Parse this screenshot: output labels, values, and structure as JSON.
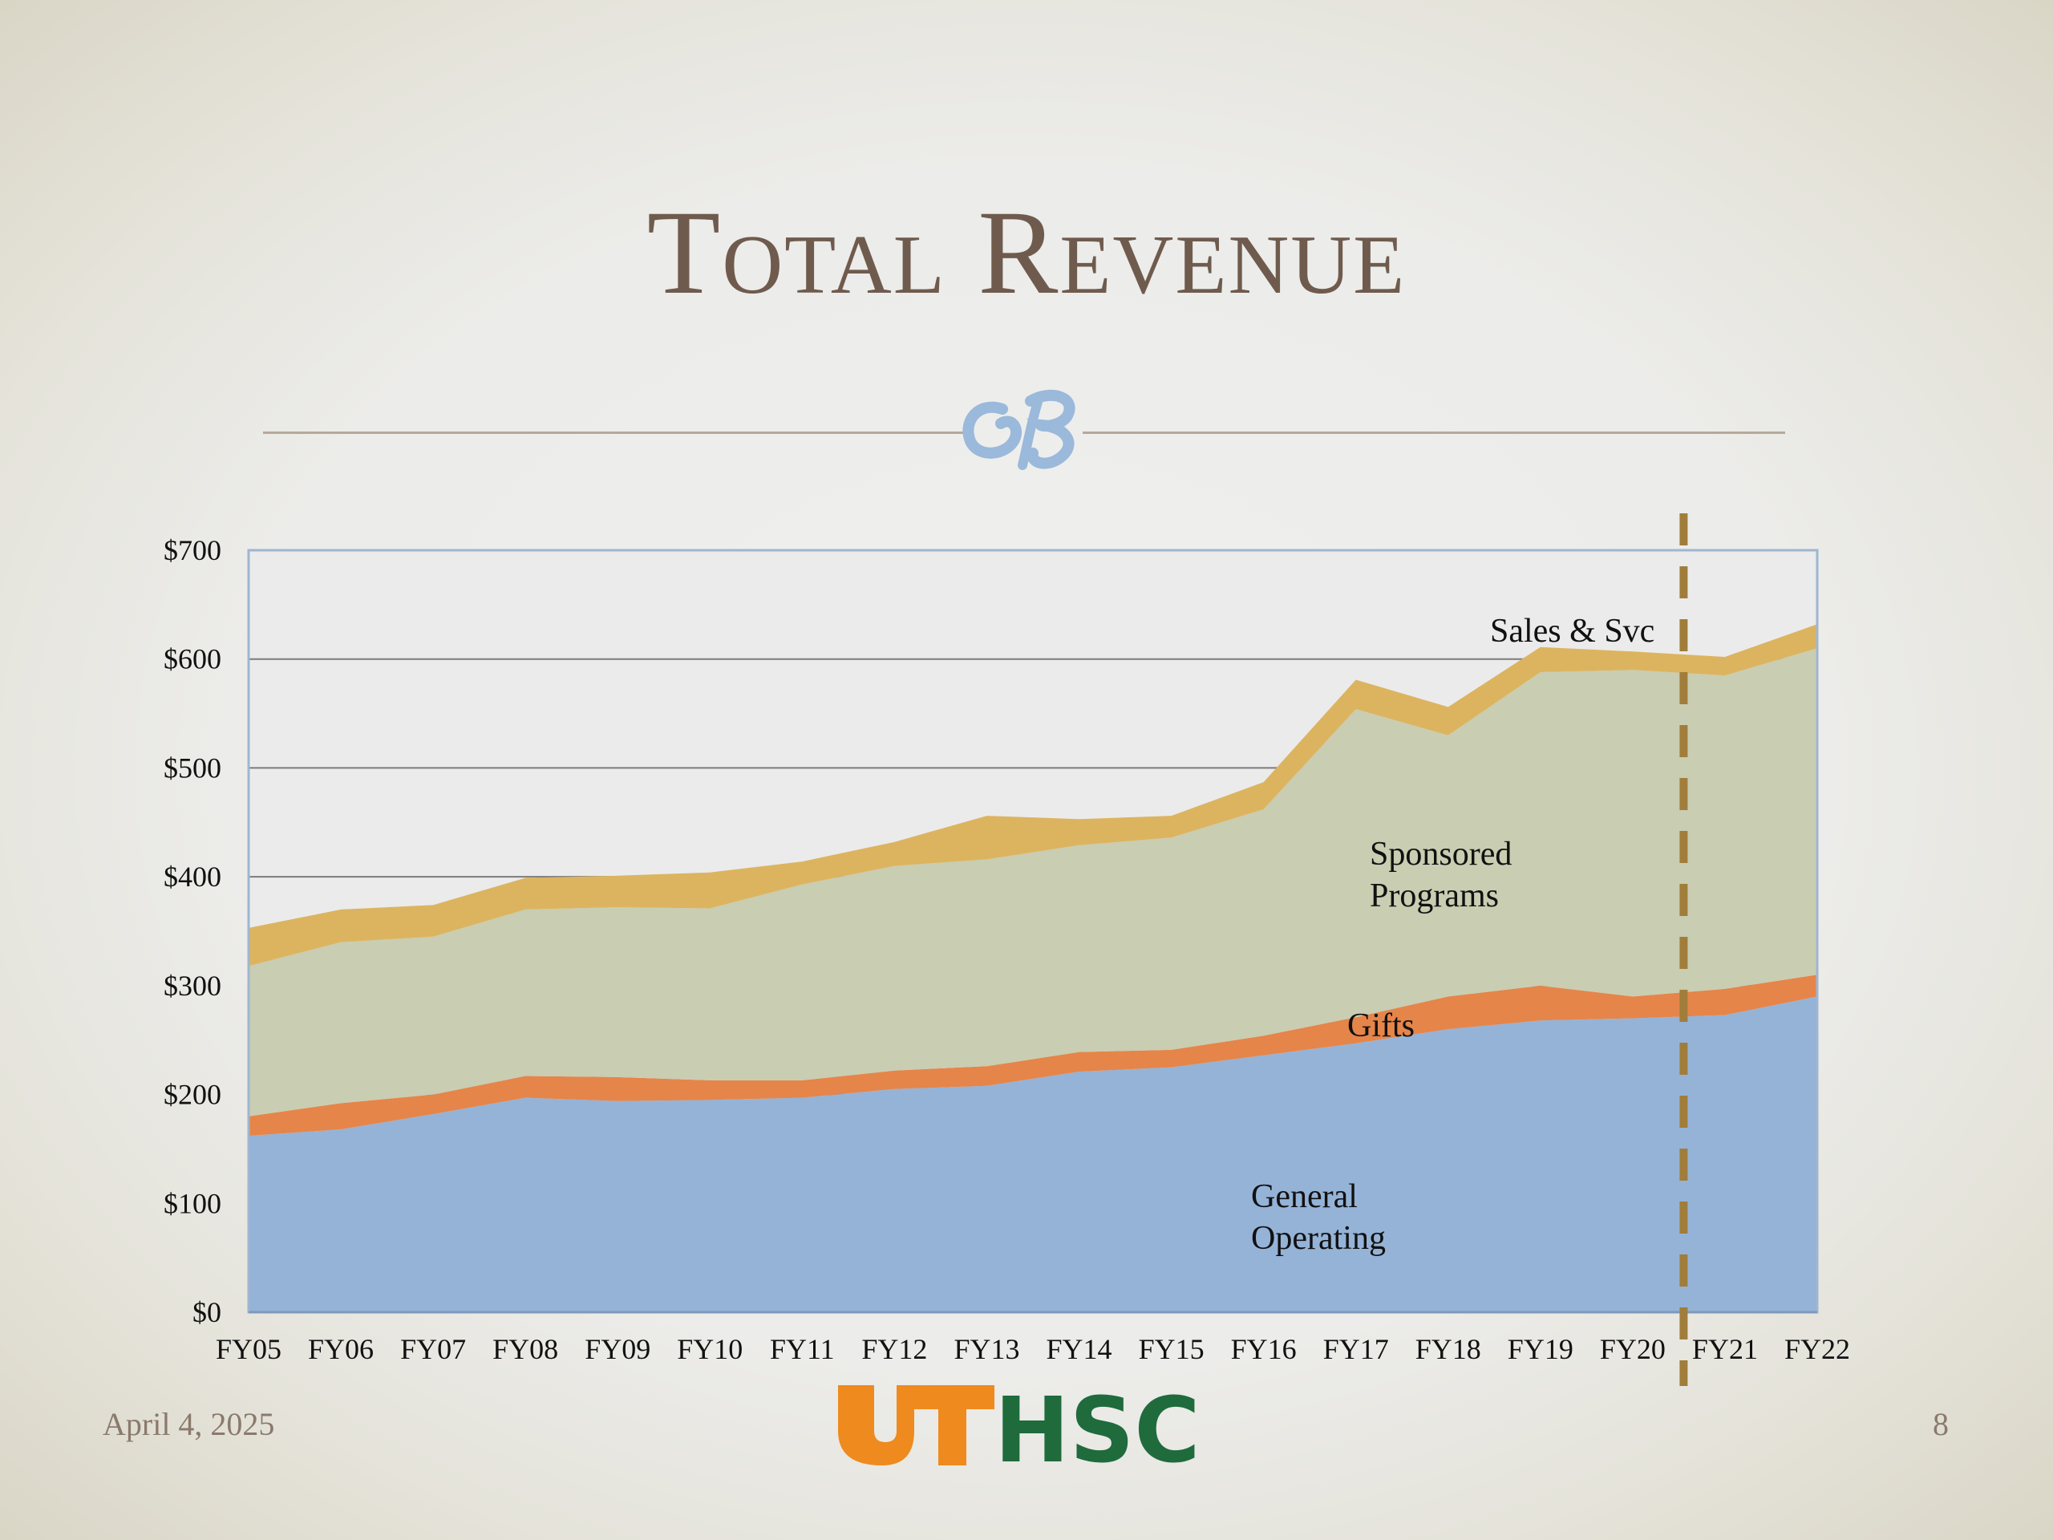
{
  "slide": {
    "title": "Total Revenue",
    "footer_date": "April 4, 2025",
    "page_number": "8",
    "logo_text": "UTHSC"
  },
  "colors": {
    "general_operating": "#95b3d7",
    "gifts": "#e5854a",
    "sponsored_programs": "#c9cdb1",
    "sales_svc": "#dcb460",
    "title": "#6f5b4d",
    "ornament": "#9ab9db",
    "divider_dashed": "#a07d3a",
    "logo_orange": "#ef8a1e",
    "logo_green": "#1f6b3c"
  },
  "chart_data": {
    "type": "area",
    "stacked": true,
    "categories": [
      "FY05",
      "FY06",
      "FY07",
      "FY08",
      "FY09",
      "FY10",
      "FY11",
      "FY12",
      "FY13",
      "FY14",
      "FY15",
      "FY16",
      "FY17",
      "FY18",
      "FY19",
      "FY20",
      "FY21",
      "FY22"
    ],
    "ylim": [
      0,
      700
    ],
    "yticks": [
      0,
      100,
      200,
      300,
      400,
      500,
      600,
      700
    ],
    "ytick_labels": [
      "$0",
      "$100",
      "$200",
      "$300",
      "$400",
      "$500",
      "$600",
      "$700"
    ],
    "grid": true,
    "series": [
      {
        "name": "General Operating",
        "values": [
          162,
          168,
          182,
          197,
          194,
          195,
          197,
          205,
          208,
          221,
          225,
          236,
          247,
          260,
          268,
          270,
          273,
          290
        ]
      },
      {
        "name": "Gifts",
        "values": [
          18,
          24,
          18,
          20,
          22,
          18,
          16,
          17,
          18,
          18,
          16,
          18,
          24,
          30,
          32,
          20,
          24,
          20
        ]
      },
      {
        "name": "Sponsored Programs",
        "values": [
          138,
          148,
          145,
          153,
          156,
          158,
          180,
          188,
          190,
          190,
          195,
          208,
          283,
          240,
          288,
          300,
          288,
          300
        ]
      },
      {
        "name": "Sales & Svc",
        "values": [
          35,
          30,
          29,
          29,
          29,
          33,
          21,
          22,
          40,
          24,
          20,
          25,
          27,
          26,
          23,
          17,
          17,
          22
        ]
      }
    ],
    "series_labels": [
      "General Operating",
      "Gifts",
      "Sponsored Programs",
      "Sales & Svc"
    ],
    "annotation": {
      "type": "dashed-vertical-line",
      "between": [
        "FY20",
        "FY21"
      ]
    }
  }
}
